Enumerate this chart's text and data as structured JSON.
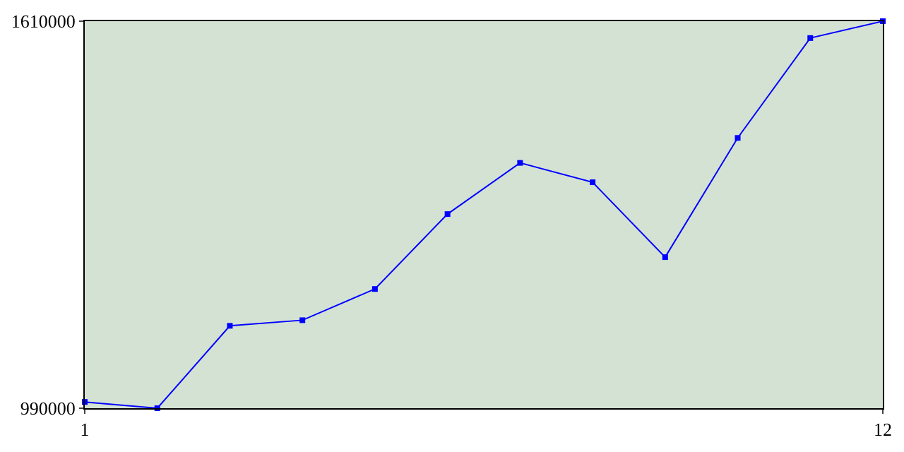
{
  "chart_data": {
    "type": "line",
    "x": [
      1,
      2,
      3,
      4,
      5,
      6,
      7,
      8,
      9,
      10,
      11,
      12
    ],
    "values": [
      1000000,
      990000,
      1122000,
      1131000,
      1181000,
      1301000,
      1383000,
      1352000,
      1232000,
      1423000,
      1583000,
      1610000
    ],
    "color": "#0000ff",
    "xlim": [
      1,
      12
    ],
    "xticks": [
      1,
      12
    ],
    "ylim": [
      990000,
      1610000
    ],
    "yticks": [
      990000,
      1610000
    ],
    "marker": "square"
  }
}
